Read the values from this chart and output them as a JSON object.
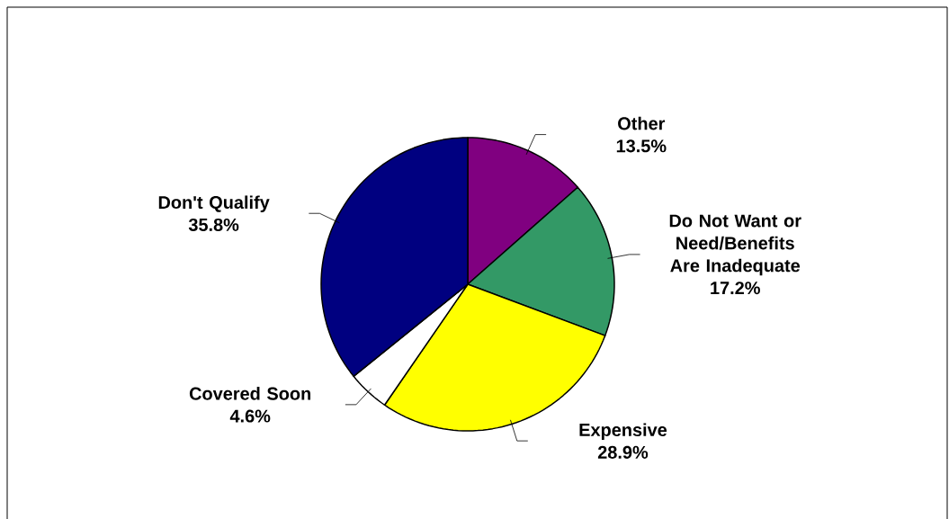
{
  "chart_data": {
    "type": "pie",
    "categories": [
      "Other",
      "Do Not Want or Need/Benefits Are Inadequate",
      "Expensive",
      "Covered Soon",
      "Don't Qualify"
    ],
    "values": [
      13.5,
      17.2,
      28.9,
      4.6,
      35.8
    ],
    "value_labels": [
      "13.5%",
      "17.2%",
      "28.9%",
      "4.6%",
      "35.8%"
    ],
    "colors": [
      "#800080",
      "#339966",
      "#ffff00",
      "#ffffff",
      "#000080"
    ]
  }
}
